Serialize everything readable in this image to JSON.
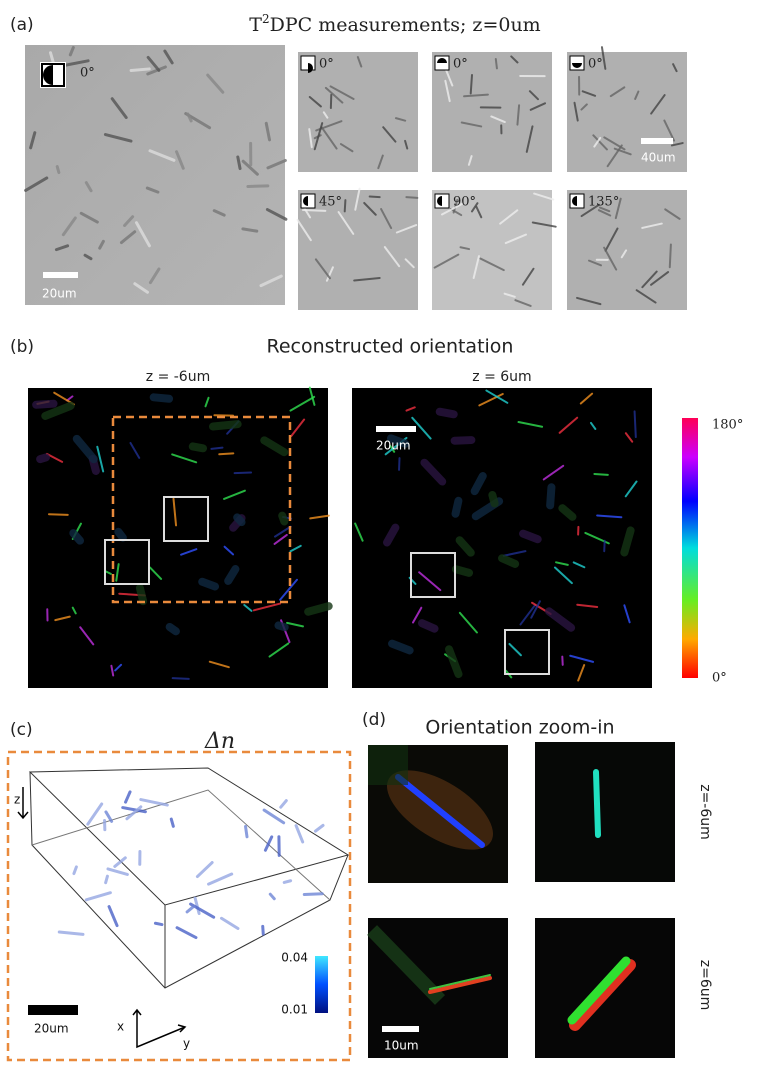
{
  "figure": {
    "panel_a": {
      "label": "(a)",
      "title_base": "T",
      "title_sup": "2",
      "title_rest": "DPC measurements; z=0um",
      "main_angle": "0°",
      "main_scale": "20um",
      "tiles": [
        "0°",
        "0°",
        "0°",
        "45°",
        "90°",
        "135°"
      ],
      "tile_scale": "40um"
    },
    "panel_b": {
      "label": "(b)",
      "title": "Reconstructed orientation",
      "left_title": "z = -6um",
      "right_title": "z = 6um",
      "scale": "20um",
      "colorbar_top": "180°",
      "colorbar_bottom": "0°"
    },
    "panel_c": {
      "label": "(c)",
      "title": "Δn",
      "axis_z": "z",
      "axis_x": "x",
      "axis_y": "y",
      "scale": "20um",
      "colorbar_top": "0.04",
      "colorbar_bottom": "0.01"
    },
    "panel_d": {
      "label": "(d)",
      "title": "Orientation zoom-in",
      "row1": "z=-6um",
      "row2": "z=6um",
      "scale": "10um"
    }
  }
}
